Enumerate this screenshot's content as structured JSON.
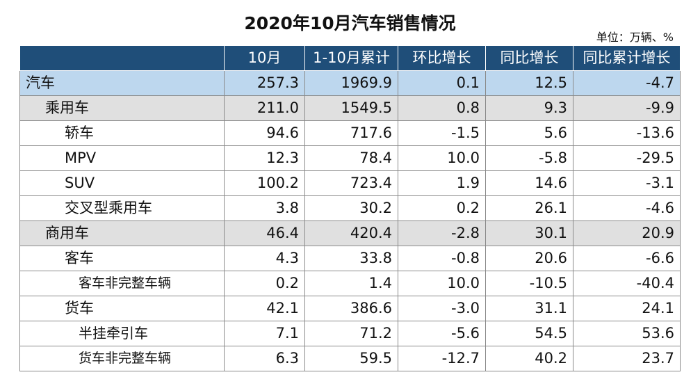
{
  "title": "2020年10月汽车销售情况",
  "unit": "单位：万辆、%",
  "columns": [
    "",
    "10月",
    "1-10月累计",
    "环比增长",
    "同比增长",
    "同比累计增长"
  ],
  "rows": [
    {
      "name": "汽车",
      "values": [
        "257.3",
        "1969.9",
        "0.1",
        "12.5",
        "-4.7"
      ]
    },
    {
      "name": "乘用车",
      "values": [
        "211.0",
        "1549.5",
        "0.8",
        "9.3",
        "-9.9"
      ]
    },
    {
      "name": "轿车",
      "values": [
        "94.6",
        "717.6",
        "-1.5",
        "5.6",
        "-13.6"
      ]
    },
    {
      "name": "MPV",
      "values": [
        "12.3",
        "78.4",
        "10.0",
        "-5.8",
        "-29.5"
      ]
    },
    {
      "name": "SUV",
      "values": [
        "100.2",
        "723.4",
        "1.9",
        "14.6",
        "-3.1"
      ]
    },
    {
      "name": "交叉型乘用车",
      "values": [
        "3.8",
        "30.2",
        "0.2",
        "26.1",
        "-4.6"
      ]
    },
    {
      "name": "商用车",
      "values": [
        "46.4",
        "420.4",
        "-2.8",
        "30.1",
        "20.9"
      ]
    },
    {
      "name": "客车",
      "values": [
        "4.3",
        "33.8",
        "-0.8",
        "20.6",
        "-6.6"
      ]
    },
    {
      "name": "客车非完整车辆",
      "values": [
        "0.2",
        "1.4",
        "10.0",
        "-10.5",
        "-40.4"
      ]
    },
    {
      "name": "货车",
      "values": [
        "42.1",
        "386.6",
        "-3.0",
        "31.1",
        "24.1"
      ]
    },
    {
      "name": "半挂牵引车",
      "values": [
        "7.1",
        "71.2",
        "-5.6",
        "54.5",
        "53.6"
      ]
    },
    {
      "name": "货车非完整车辆",
      "values": [
        "6.3",
        "59.5",
        "-12.7",
        "40.2",
        "23.7"
      ]
    }
  ]
}
